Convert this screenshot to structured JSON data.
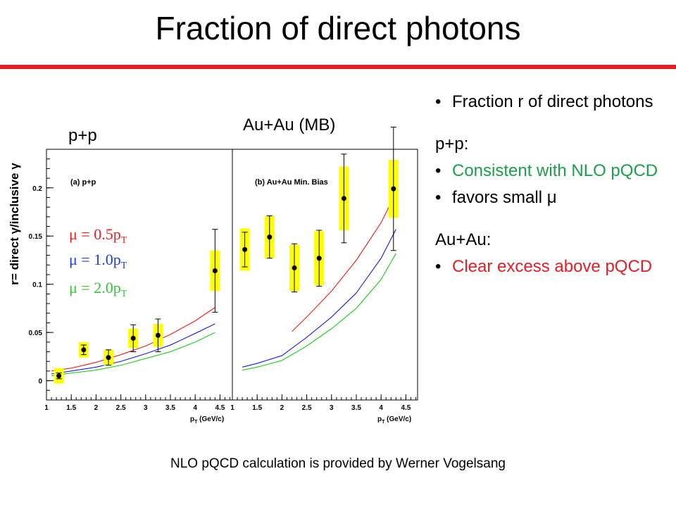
{
  "title": "Fraction of direct photons",
  "footnote": "NLO pQCD calculation is provided by Werner Vogelsang",
  "panel_labels": {
    "pp": "p+p",
    "auau": "Au+Au (MB)"
  },
  "bullets": {
    "b1": "Fraction r of direct photons",
    "pp_heading": "p+p:",
    "b2": "Consistent with NLO pQCD",
    "b3": "favors small μ",
    "auau_heading": "Au+Au:",
    "b4": "Clear excess above pQCD",
    "bullet_char": "•"
  },
  "colors": {
    "title_rule": "#e41e26",
    "green_text": "#1a9f4a",
    "red_text": "#e41e26",
    "mu05": "#ff0000",
    "mu10": "#0000ff",
    "mu20": "#00cc00",
    "syst_box": "#ffff00",
    "panel_frame": "#000000"
  },
  "chart_data": {
    "type": "scatter",
    "ylabel": "r= direct γ/inclusive γ",
    "ylim": [
      -0.02,
      0.24
    ],
    "yticks": [
      0,
      0.05,
      0.1,
      0.15,
      0.2
    ],
    "ytick_labels": [
      "0",
      "0.05",
      "0.1",
      "0.15",
      "0.2"
    ],
    "xlim": [
      1,
      4.75
    ],
    "xticks": [
      1,
      1.5,
      2,
      2.5,
      3,
      3.5,
      4,
      4.5
    ],
    "xtick_labels": [
      "1",
      "1.5",
      "2",
      "2.5",
      "3",
      "3.5",
      "4",
      "4.5"
    ],
    "curve_legend": [
      {
        "mu": "μ = 0.5p",
        "sub": "T"
      },
      {
        "mu": "μ = 1.0p",
        "sub": "T"
      },
      {
        "mu": "μ = 2.0p",
        "sub": "T"
      }
    ],
    "panels": [
      {
        "label": "(a) p+p",
        "xlabel_p": "p",
        "xlabel_sub": "T",
        "xlabel_rest": " (GeV/c)",
        "points": [
          {
            "x": 1.25,
            "y": 0.005,
            "err": 0.003,
            "sys": 0.008
          },
          {
            "x": 1.75,
            "y": 0.032,
            "err": 0.005,
            "sys": 0.008
          },
          {
            "x": 2.25,
            "y": 0.024,
            "err": 0.008,
            "sys": 0.008
          },
          {
            "x": 2.75,
            "y": 0.044,
            "err": 0.014,
            "sys": 0.01
          },
          {
            "x": 3.25,
            "y": 0.047,
            "err": 0.017,
            "sys": 0.012
          },
          {
            "x": 4.4,
            "y": 0.114,
            "err": 0.043,
            "sys": 0.021
          }
        ],
        "curves": [
          {
            "name": "μ = 0.5pT",
            "x": [
              1.1,
              1.5,
              2.0,
              2.5,
              3.0,
              3.5,
              4.0,
              4.4
            ],
            "y": [
              0.01,
              0.013,
              0.019,
              0.027,
              0.036,
              0.048,
              0.062,
              0.076
            ]
          },
          {
            "name": "μ = 1.0pT",
            "x": [
              1.1,
              1.5,
              2.0,
              2.5,
              3.0,
              3.5,
              4.0,
              4.4
            ],
            "y": [
              0.007,
              0.01,
              0.014,
              0.02,
              0.028,
              0.037,
              0.049,
              0.059
            ]
          },
          {
            "name": "μ = 2.0pT",
            "x": [
              1.1,
              1.5,
              2.0,
              2.5,
              3.0,
              3.5,
              4.0,
              4.4
            ],
            "y": [
              0.005,
              0.008,
              0.011,
              0.016,
              0.023,
              0.03,
              0.04,
              0.05
            ]
          }
        ]
      },
      {
        "label": "(b) Au+Au Min. Bias",
        "xlabel_p": "p",
        "xlabel_sub": "T",
        "xlabel_rest": " (GeV/c)",
        "points": [
          {
            "x": 1.25,
            "y": 0.136,
            "err": 0.018,
            "sys": 0.022
          },
          {
            "x": 1.75,
            "y": 0.149,
            "err": 0.022,
            "sys": 0.022
          },
          {
            "x": 2.25,
            "y": 0.117,
            "err": 0.025,
            "sys": 0.024
          },
          {
            "x": 2.75,
            "y": 0.127,
            "err": 0.029,
            "sys": 0.028
          },
          {
            "x": 3.25,
            "y": 0.189,
            "err": 0.046,
            "sys": 0.033
          },
          {
            "x": 4.25,
            "y": 0.199,
            "err": 0.064,
            "sys": 0.03
          }
        ],
        "curves": [
          {
            "name": "μ = 0.5pT",
            "x": [
              2.2,
              2.5,
              3.0,
              3.5,
              4.0,
              4.3
            ],
            "y": [
              0.051,
              0.066,
              0.093,
              0.125,
              0.164,
              0.195
            ]
          },
          {
            "name": "μ = 1.0pT",
            "x": [
              1.2,
              1.5,
              2.0,
              2.5,
              3.0,
              3.5,
              4.0,
              4.3
            ],
            "y": [
              0.014,
              0.018,
              0.026,
              0.045,
              0.066,
              0.091,
              0.127,
              0.157
            ]
          },
          {
            "name": "μ = 2.0pT",
            "x": [
              1.2,
              1.5,
              2.0,
              2.5,
              3.0,
              3.5,
              4.0,
              4.3
            ],
            "y": [
              0.011,
              0.014,
              0.021,
              0.036,
              0.054,
              0.075,
              0.105,
              0.132
            ]
          }
        ]
      }
    ]
  }
}
